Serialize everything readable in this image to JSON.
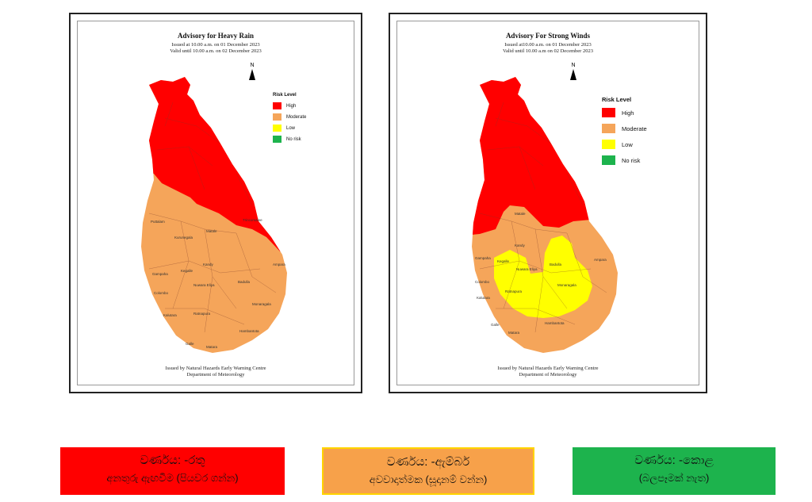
{
  "colors": {
    "high": "#ff0000",
    "moderate": "#f5a55a",
    "low": "#ffff00",
    "no_risk": "#1db34d"
  },
  "rain_map": {
    "title": "Advisory for Heavy Rain",
    "issued": "Issued at 10.00 a.m. on 01 December 2023",
    "valid": "Valid until 10.00 a.m. on 02 December 2023",
    "north": "N",
    "legend_title": "Risk Level",
    "legend": [
      "High",
      "Moderate",
      "Low",
      "No risk"
    ],
    "footer1": "Issued by Natural Hazards Early Warning Centre",
    "footer2": "Department of Meteorology",
    "labels": [
      "Puttalam",
      "Kurunegala",
      "Matale",
      "Kandy",
      "Gampaha",
      "Kegalle",
      "Colombo",
      "Nuwara Eliya",
      "Badulla",
      "Ampara",
      "Kalutara",
      "Ratnapura",
      "Monaragala",
      "Galle",
      "Hambantota",
      "Matara",
      "Trincomalee"
    ]
  },
  "wind_map": {
    "title": "Advisory For Strong Winds",
    "issued": "Issued at10.00 a.m. on 01 December 2023",
    "valid": "Valid until 10.00 a.m on 02 December 2023",
    "north": "N",
    "legend_title": "Risk Level",
    "legend": [
      "High",
      "Moderate",
      "Low",
      "No risk"
    ],
    "footer1": "Issued by Natural Hazards Early Warning Centre",
    "footer2": "Department of Meteorology",
    "labels": [
      "Matale",
      "Kandy",
      "Kegalle",
      "Gampaha",
      "Colombo",
      "Nuwara Eliya",
      "Badulla",
      "Monaragala",
      "Ratnapura",
      "Kalutara",
      "Hambantota",
      "Galle",
      "Matara",
      "Ampara"
    ]
  },
  "banners": {
    "red": {
      "line1": "වර්ණය: -රතු",
      "line2": "අනතුරු ඇඟවීම (පියවර ගන්න)"
    },
    "amber": {
      "line1": "වර්ණය: -ඇම්බර්",
      "line2": "අවවාදාත්මක (සූදානම් වන්න)"
    },
    "green": {
      "line1": "වර්ණය: -කොළ",
      "line2": "(බලපෑමක් නැත)"
    }
  }
}
